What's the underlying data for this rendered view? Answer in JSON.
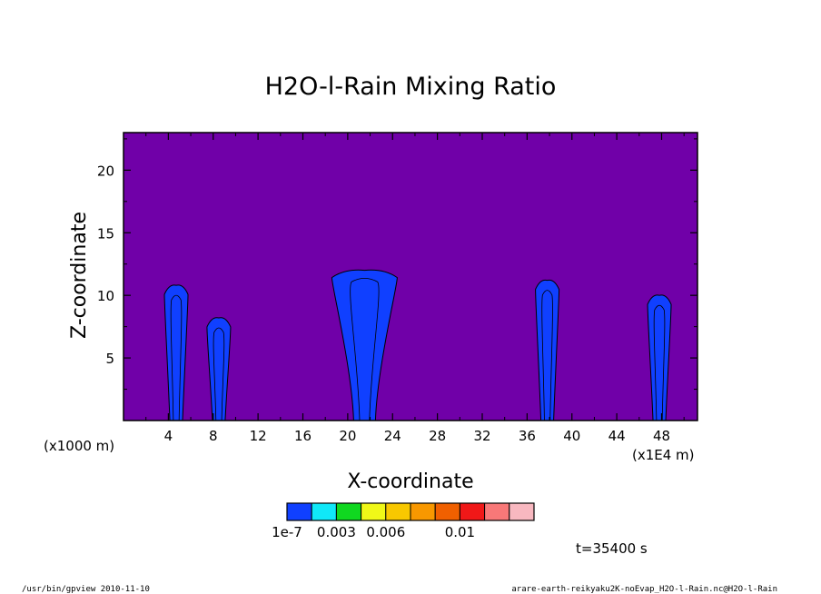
{
  "chart_data": {
    "type": "heatmap",
    "title": "H2O-l-Rain Mixing Ratio",
    "xlabel": "X-coordinate",
    "ylabel": "Z-coordinate",
    "x_unit_label": "(x1E4 m)",
    "y_unit_label": "(x1000 m)",
    "xlim": [
      0,
      51.2
    ],
    "ylim": [
      0,
      23
    ],
    "x_ticks": [
      4,
      8,
      12,
      16,
      20,
      24,
      28,
      32,
      36,
      40,
      44,
      48
    ],
    "y_ticks": [
      5,
      10,
      15,
      20
    ],
    "background_color": "#7000a8",
    "colorbar": {
      "colors": [
        "#1040ff",
        "#10e8f8",
        "#10d820",
        "#f0f818",
        "#f8c800",
        "#f89800",
        "#f06000",
        "#f01818",
        "#f87878",
        "#f8b8c0"
      ],
      "tick_labels": [
        {
          "index": 0,
          "text": "1e-7"
        },
        {
          "index": 2,
          "text": "0.003"
        },
        {
          "index": 4,
          "text": "0.006"
        },
        {
          "index": 7,
          "text": "0.01"
        }
      ]
    },
    "rain_cells": [
      {
        "x_center": 4.7,
        "top": 10.8
      },
      {
        "x_center": 8.5,
        "top": 8.2
      },
      {
        "x_center": 21.5,
        "top": 12.0
      },
      {
        "x_center": 37.8,
        "top": 11.2
      },
      {
        "x_center": 47.8,
        "top": 10.0
      }
    ]
  },
  "time_label": "t=35400 s",
  "footer": {
    "left": "/usr/bin/gpview   2010-11-10",
    "right": "arare-earth-reikyaku2K-noEvap_H2O-l-Rain.nc@H2O-l-Rain"
  }
}
